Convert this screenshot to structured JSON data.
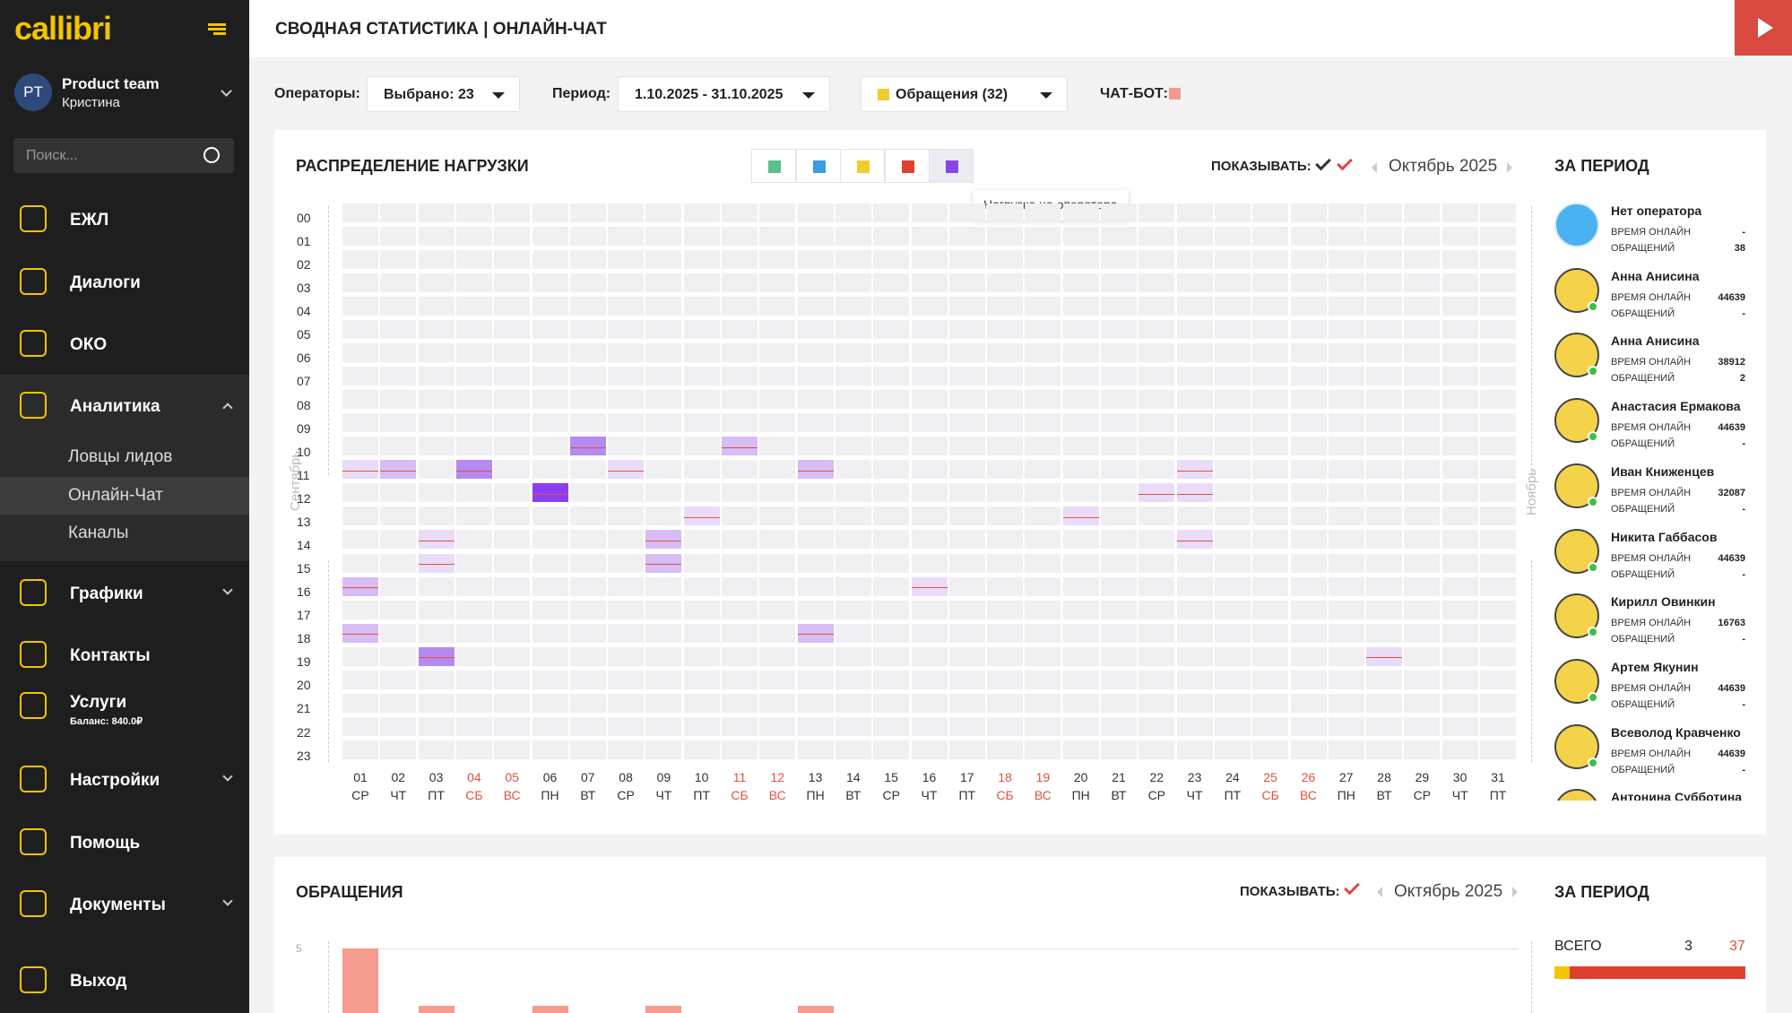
{
  "sidebar": {
    "logo": "callibri",
    "account": {
      "initials": "PT",
      "team": "Product team",
      "user": "Кристина"
    },
    "search": "Поиск...",
    "menu": [
      {
        "label": "ЕЖЛ"
      },
      {
        "label": "Диалоги"
      },
      {
        "label": "ОКО"
      },
      {
        "label": "Аналитика",
        "open": true,
        "sub": [
          "Ловцы лидов",
          "Онлайн-Чат",
          "Каналы"
        ],
        "active_sub": 1
      },
      {
        "label": "Графики",
        "chevron": true
      },
      {
        "label": "Контакты"
      },
      {
        "label": "Услуги",
        "note": "Баланс: 840.0₽"
      },
      {
        "label": "Настройки",
        "chevron": true
      },
      {
        "label": "Помощь"
      },
      {
        "label": "Документы",
        "chevron": true
      },
      {
        "label": "Выход"
      }
    ]
  },
  "header": {
    "title": "СВОДНАЯ СТАТИСТИКА | ОНЛАЙН-ЧАТ"
  },
  "filters": {
    "operators_label": "Операторы:",
    "operators_value": "Выбрано: 23",
    "period_label": "Период:",
    "period_value": "1.10.2025 - 31.10.2025",
    "type_value": "Обращения (32)",
    "chatbot_label": "ЧАТ-БОТ:"
  },
  "load": {
    "title": "РАСПРЕДЕЛЕНИЕ НАГРУЗКИ",
    "toggles": [
      "#5dbf8a",
      "#3d9be0",
      "#f0cc30",
      "#e0402e",
      "#8a45e8"
    ],
    "active_toggle": 4,
    "tooltip": "Нагрузка на оператора",
    "show_label": "ПОКАЗЫВАТЬ:",
    "month": "Октябрь 2025",
    "prev_month": "Сентябрь",
    "next_month": "Ноябрь",
    "hours": [
      "00",
      "01",
      "02",
      "03",
      "04",
      "05",
      "06",
      "07",
      "08",
      "09",
      "10",
      "11",
      "12",
      "13",
      "14",
      "15",
      "16",
      "17",
      "18",
      "19",
      "20",
      "21",
      "22",
      "23"
    ],
    "days": [
      {
        "d": "01",
        "w": "СР"
      },
      {
        "d": "02",
        "w": "ЧТ"
      },
      {
        "d": "03",
        "w": "ПТ"
      },
      {
        "d": "04",
        "w": "СБ",
        "off": true
      },
      {
        "d": "05",
        "w": "ВС",
        "off": true
      },
      {
        "d": "06",
        "w": "ПН"
      },
      {
        "d": "07",
        "w": "ВТ"
      },
      {
        "d": "08",
        "w": "СР"
      },
      {
        "d": "09",
        "w": "ЧТ"
      },
      {
        "d": "10",
        "w": "ПТ"
      },
      {
        "d": "11",
        "w": "СБ",
        "off": true
      },
      {
        "d": "12",
        "w": "ВС",
        "off": true
      },
      {
        "d": "13",
        "w": "ПН"
      },
      {
        "d": "14",
        "w": "ВТ"
      },
      {
        "d": "15",
        "w": "СР"
      },
      {
        "d": "16",
        "w": "ЧТ"
      },
      {
        "d": "17",
        "w": "ПТ"
      },
      {
        "d": "18",
        "w": "СБ",
        "off": true
      },
      {
        "d": "19",
        "w": "ВС",
        "off": true
      },
      {
        "d": "20",
        "w": "ПН"
      },
      {
        "d": "21",
        "w": "ВТ"
      },
      {
        "d": "22",
        "w": "СР"
      },
      {
        "d": "23",
        "w": "ЧТ"
      },
      {
        "d": "24",
        "w": "ПТ"
      },
      {
        "d": "25",
        "w": "СБ",
        "off": true
      },
      {
        "d": "26",
        "w": "ВС",
        "off": true
      },
      {
        "d": "27",
        "w": "ПН"
      },
      {
        "d": "28",
        "w": "ВТ"
      },
      {
        "d": "29",
        "w": "СР"
      },
      {
        "d": "30",
        "w": "ЧТ"
      },
      {
        "d": "31",
        "w": "ПТ"
      }
    ],
    "cells": [
      {
        "day": 7,
        "hour": 10,
        "level": 3
      },
      {
        "day": 11,
        "hour": 10,
        "level": 2
      },
      {
        "day": 1,
        "hour": 11,
        "level": 1
      },
      {
        "day": 2,
        "hour": 11,
        "level": 2
      },
      {
        "day": 4,
        "hour": 11,
        "level": 3
      },
      {
        "day": 8,
        "hour": 11,
        "level": 1
      },
      {
        "day": 13,
        "hour": 11,
        "level": 2
      },
      {
        "day": 23,
        "hour": 11,
        "level": 1
      },
      {
        "day": 6,
        "hour": 12,
        "level": 4
      },
      {
        "day": 22,
        "hour": 12,
        "level": 1
      },
      {
        "day": 23,
        "hour": 12,
        "level": 1
      },
      {
        "day": 10,
        "hour": 13,
        "level": 1
      },
      {
        "day": 20,
        "hour": 13,
        "level": 1
      },
      {
        "day": 3,
        "hour": 14,
        "level": 1
      },
      {
        "day": 9,
        "hour": 14,
        "level": 2
      },
      {
        "day": 23,
        "hour": 14,
        "level": 1
      },
      {
        "day": 3,
        "hour": 15,
        "level": 1
      },
      {
        "day": 9,
        "hour": 15,
        "level": 2
      },
      {
        "day": 1,
        "hour": 16,
        "level": 2
      },
      {
        "day": 16,
        "hour": 16,
        "level": 1
      },
      {
        "day": 1,
        "hour": 18,
        "level": 2
      },
      {
        "day": 13,
        "hour": 18,
        "level": 2
      },
      {
        "day": 3,
        "hour": 19,
        "level": 3
      },
      {
        "day": 28,
        "hour": 19,
        "level": 1
      }
    ],
    "period_title": "ЗА ПЕРИОД",
    "online_label": "ВРЕМЯ ОНЛАЙН",
    "requests_label": "ОБРАЩЕНИЙ",
    "operators": [
      {
        "name": "Нет оператора",
        "online": "-",
        "requests": 38,
        "bot": true
      },
      {
        "name": "Анна Анисина",
        "online": 44639,
        "requests": "-"
      },
      {
        "name": "Анна Анисина",
        "online": 38912,
        "requests": 2
      },
      {
        "name": "Анастасия Ермакова",
        "online": 44639,
        "requests": "-"
      },
      {
        "name": "Иван Книженцев",
        "online": 32087,
        "requests": "-"
      },
      {
        "name": "Никита Габбасов",
        "online": 44639,
        "requests": "-"
      },
      {
        "name": "Кирилл Овинкин",
        "online": 16763,
        "requests": "-"
      },
      {
        "name": "Артем Якунин",
        "online": 44639,
        "requests": "-"
      },
      {
        "name": "Всеволод Кравченко",
        "online": 44639,
        "requests": "-"
      },
      {
        "name": "Антонина Субботина",
        "online": "-",
        "requests": "-"
      }
    ]
  },
  "requests": {
    "title": "ОБРАЩЕНИЯ",
    "show_label": "ПОКАЗЫВАТЬ:",
    "month": "Октябрь 2025",
    "yticks": [
      5
    ],
    "ylim": [
      0,
      5.4
    ],
    "bars": [
      {
        "day": 1,
        "value": 5
      },
      {
        "day": 3,
        "value": 1
      },
      {
        "day": 6,
        "value": 1
      },
      {
        "day": 9,
        "value": 1
      },
      {
        "day": 13,
        "value": 1
      }
    ],
    "period_title": "ЗА ПЕРИОД",
    "total_label": "ВСЕГО",
    "total_bot": 3,
    "total_all": 37
  }
}
